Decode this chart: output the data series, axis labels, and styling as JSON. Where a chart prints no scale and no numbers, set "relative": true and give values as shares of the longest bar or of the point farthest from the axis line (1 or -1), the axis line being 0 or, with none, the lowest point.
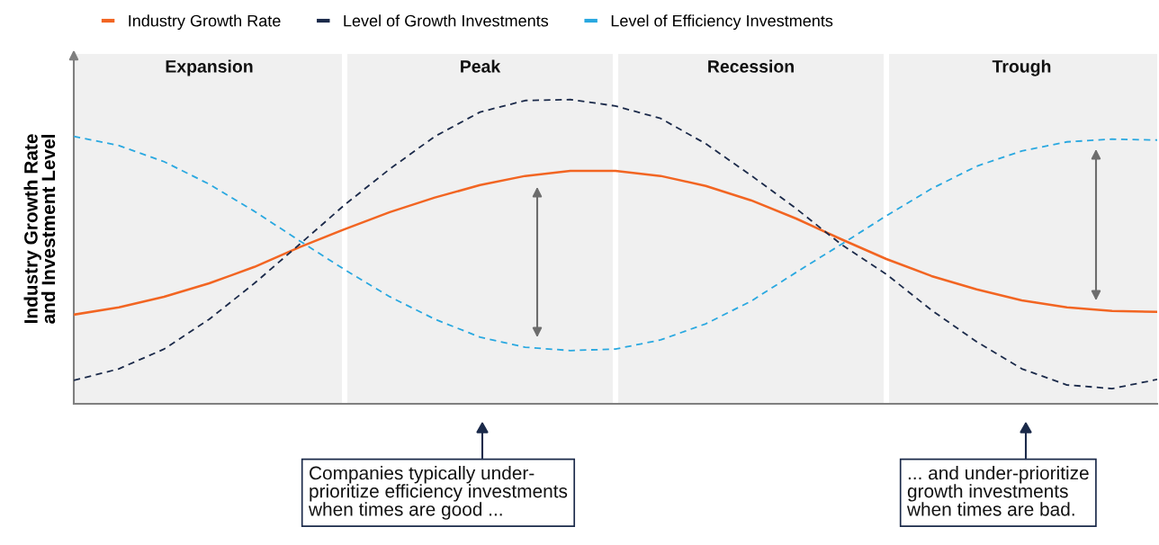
{
  "chart_data": {
    "type": "line",
    "relative": true,
    "grid": false,
    "legend": "top left",
    "ylabel": "Industry Growth Rate\nand Investment Level",
    "categories": [
      null,
      null,
      null,
      null,
      null,
      null,
      null,
      null,
      null,
      null,
      null,
      null,
      null,
      null,
      null,
      null,
      null,
      null,
      null,
      null,
      null,
      null,
      null,
      null,
      null
    ],
    "series": [
      {
        "name": "Industry Growth Rate",
        "color": "#f26522",
        "line_style": "solid",
        "values": [
          0.293,
          0.317,
          0.352,
          0.396,
          0.45,
          0.515,
          0.574,
          0.63,
          0.678,
          0.719,
          0.749,
          0.766,
          0.766,
          0.749,
          0.716,
          0.669,
          0.609,
          0.541,
          0.476,
          0.42,
          0.376,
          0.34,
          0.317,
          0.305,
          0.302
        ]
      },
      {
        "name": "Level of Growth Investments",
        "color": "#1b2a4a",
        "line_style": "dashed",
        "values": [
          0.077,
          0.115,
          0.18,
          0.278,
          0.396,
          0.524,
          0.654,
          0.772,
          0.879,
          0.959,
          0.997,
          1.0,
          0.979,
          0.938,
          0.855,
          0.751,
          0.642,
          0.524,
          0.426,
          0.308,
          0.204,
          0.115,
          0.062,
          0.05,
          0.08
        ]
      },
      {
        "name": "Level of Efficiency Investments",
        "color": "#29a8e0",
        "line_style": "dashed",
        "values": [
          0.879,
          0.849,
          0.796,
          0.722,
          0.633,
          0.536,
          0.441,
          0.352,
          0.278,
          0.219,
          0.186,
          0.175,
          0.18,
          0.21,
          0.263,
          0.337,
          0.432,
          0.524,
          0.618,
          0.707,
          0.781,
          0.831,
          0.861,
          0.87,
          0.867
        ]
      }
    ],
    "annotations": [
      "Expansion",
      "Peak",
      "Recession",
      "Trough",
      "Companies typically under-\nprioritize efficiency investments\nwhen times are good ...",
      "... and under-prioritize\ngrowth investments\nwhen times are bad."
    ]
  }
}
